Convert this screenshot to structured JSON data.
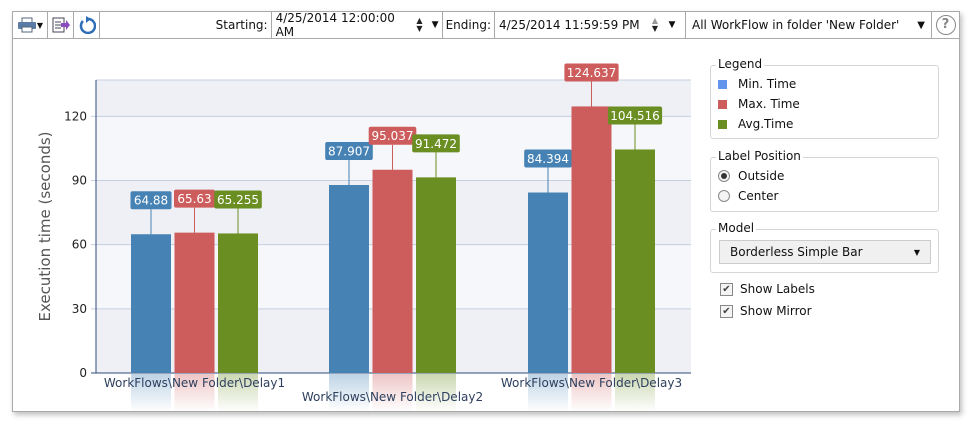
{
  "toolbar": {
    "starting_label": "Starting:",
    "starting_value": "4/25/2014 12:00:00 AM",
    "ending_label": "Ending:",
    "ending_value": "4/25/2014 11:59:59 PM",
    "filter_value": "All WorkFlow in folder 'New Folder'",
    "help": "?"
  },
  "legend": {
    "title": "Legend",
    "items": [
      {
        "label": "Min. Time",
        "color": "#6495ED"
      },
      {
        "label": "Max. Time",
        "color": "#CD5C5C"
      },
      {
        "label": "Avg.Time",
        "color": "#6B8E23"
      }
    ]
  },
  "label_position": {
    "title": "Label Position",
    "options": [
      "Outside",
      "Center"
    ],
    "selected": "Outside"
  },
  "model": {
    "title": "Model",
    "value": "Borderless Simple Bar"
  },
  "options": {
    "show_labels": "Show Labels",
    "show_labels_checked": true,
    "show_mirror": "Show Mirror",
    "show_mirror_checked": true
  },
  "chart_data": {
    "type": "bar",
    "categories": [
      "WorkFlows\\New Folder\\Delay1",
      "WorkFlows\\New Folder\\Delay2",
      "WorkFlows\\New Folder\\Delay3"
    ],
    "series": [
      {
        "name": "Min. Time",
        "color": "#4682B4",
        "values": [
          64.88,
          87.907,
          84.394
        ]
      },
      {
        "name": "Max. Time",
        "color": "#CD5C5C",
        "values": [
          65.63,
          95.037,
          124.637
        ]
      },
      {
        "name": "Avg.Time",
        "color": "#6B8E23",
        "values": [
          65.255,
          91.472,
          104.516
        ]
      }
    ],
    "data_labels": [
      [
        "64.88",
        "87.907",
        "84.394"
      ],
      [
        "65.63",
        "95.037",
        "124.637"
      ],
      [
        "65.255",
        "91.472",
        "104.516"
      ]
    ],
    "ylabel": "Execution time (seconds)",
    "xlabel": "",
    "ylim": [
      0,
      137
    ],
    "yticks": [
      "0",
      "30",
      "60",
      "90",
      "120"
    ],
    "grid": true,
    "legend": "right",
    "mirror": true
  }
}
